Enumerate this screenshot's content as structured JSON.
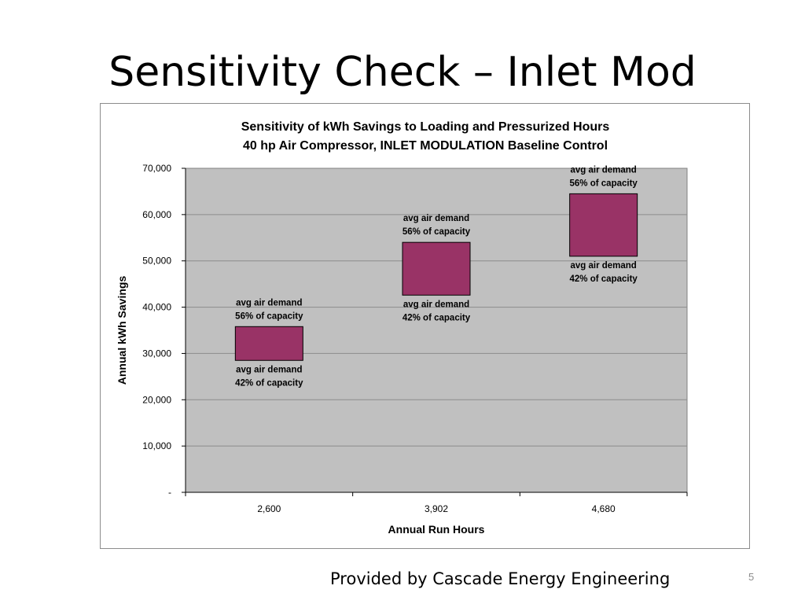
{
  "slide": {
    "title": "Sensitivity Check – Inlet Mod",
    "footer": "Provided by Cascade Energy Engineering",
    "page_number": "5"
  },
  "colors": {
    "plot_bg": "#c0c0c0",
    "box_fill": "#993366",
    "grid": "#8c8c8c"
  },
  "chart_data": {
    "type": "bar",
    "subtype": "floating-range",
    "title_lines": [
      "Sensitivity of kWh Savings to Loading and Pressurized Hours",
      "40 hp Air Compressor, INLET MODULATION Baseline Control"
    ],
    "xlabel": "Annual Run Hours",
    "ylabel": "Annual kWh Savings",
    "categories": [
      "2,600",
      "3,902",
      "4,680"
    ],
    "ylim": [
      0,
      70000
    ],
    "yticks": [
      0,
      10000,
      20000,
      30000,
      40000,
      50000,
      60000,
      70000
    ],
    "ytick_labels": [
      "-",
      "10,000",
      "20,000",
      "30,000",
      "40,000",
      "50,000",
      "60,000",
      "70,000"
    ],
    "grid": true,
    "legend": "none",
    "ranges": [
      {
        "category": "2,600",
        "low": 28500,
        "high": 35800,
        "high_label": [
          "avg air demand",
          "56% of capacity"
        ],
        "low_label": [
          "avg air demand",
          "42% of capacity"
        ]
      },
      {
        "category": "3,902",
        "low": 42600,
        "high": 54000,
        "high_label": [
          "avg air demand",
          "56% of capacity"
        ],
        "low_label": [
          "avg air demand",
          "42% of capacity"
        ]
      },
      {
        "category": "4,680",
        "low": 51000,
        "high": 64500,
        "high_label": [
          "avg air demand",
          "56% of capacity"
        ],
        "low_label": [
          "avg air demand",
          "42% of capacity"
        ]
      }
    ]
  }
}
